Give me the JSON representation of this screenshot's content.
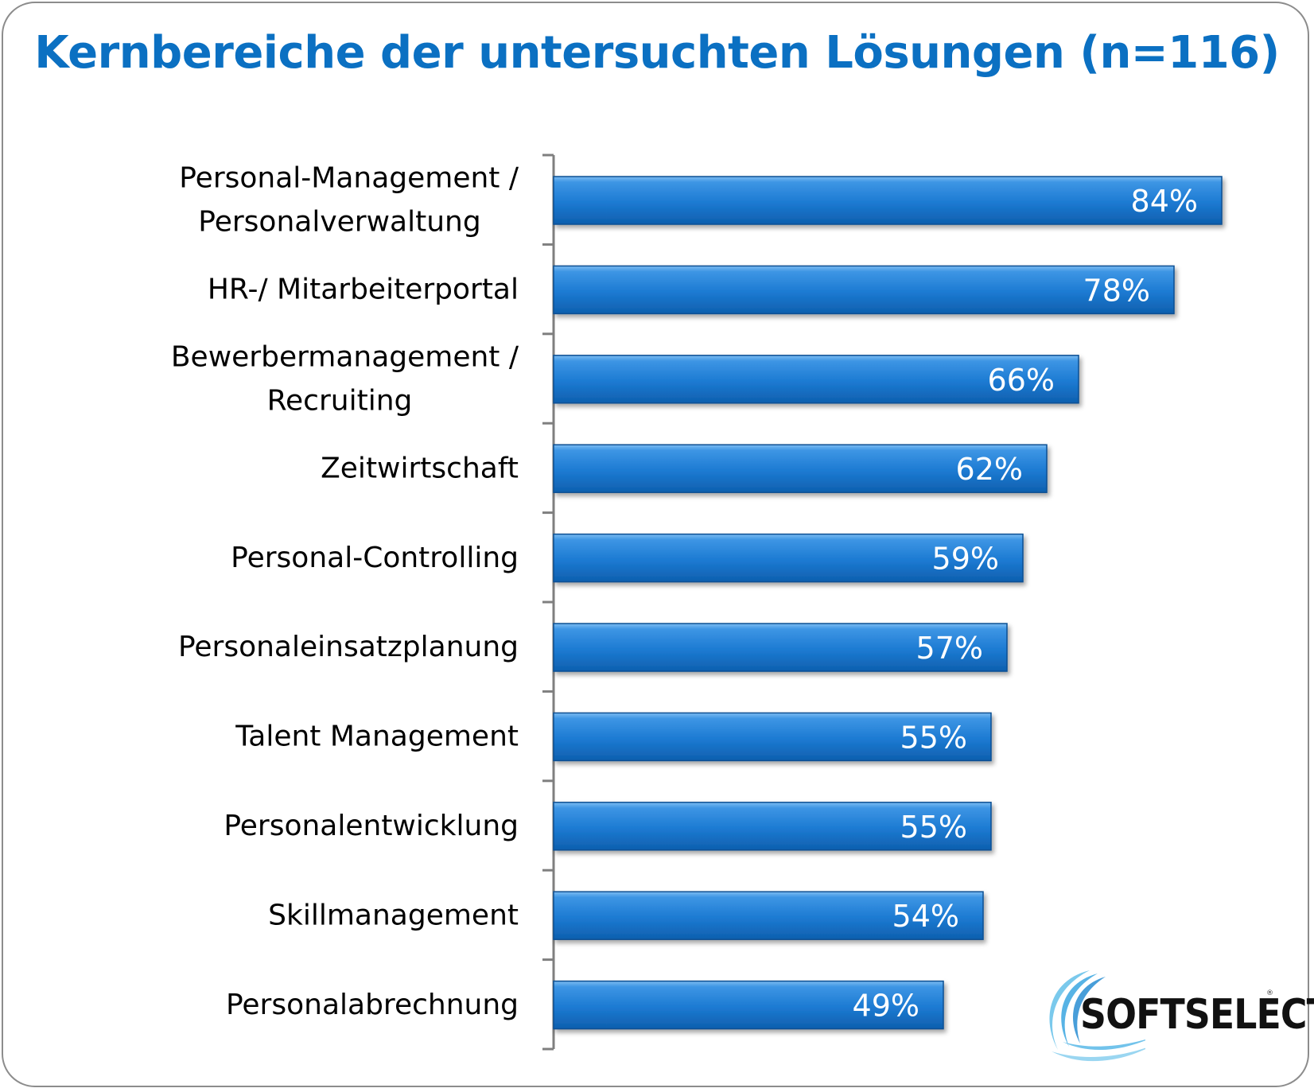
{
  "title": "Kernbereiche der untersuchten Lösungen (n=116)",
  "colors": {
    "title": "#0b70c2",
    "bar_light": "#5aa8ea",
    "bar_mid": "#1a78d2",
    "bar_dark": "#0b5aa6",
    "axis": "#7f7f7f"
  },
  "logo": {
    "text_first": "SOFT",
    "text_second": "SELECT",
    "mark": "®",
    "icon": "swoosh-icon"
  },
  "chart_data": {
    "type": "bar",
    "orientation": "horizontal",
    "title": "Kernbereiche der untersuchten Lösungen (n=116)",
    "categories": [
      [
        "Personal-Management /",
        "Personalverwaltung"
      ],
      [
        "HR-/ Mitarbeiterportal"
      ],
      [
        "Bewerbermanagement /",
        "Recruiting"
      ],
      [
        "Zeitwirtschaft"
      ],
      [
        "Personal-Controlling"
      ],
      [
        "Personaleinsatzplanung"
      ],
      [
        "Talent Management"
      ],
      [
        "Personalentwicklung"
      ],
      [
        "Skillmanagement"
      ],
      [
        "Personalabrechnung"
      ]
    ],
    "values": [
      84,
      78,
      66,
      62,
      59,
      57,
      55,
      55,
      54,
      49
    ],
    "value_labels": [
      "84%",
      "78%",
      "66%",
      "62%",
      "59%",
      "57%",
      "55%",
      "55%",
      "54%",
      "49%"
    ],
    "unit": "%",
    "xlim": [
      0,
      100
    ],
    "grid": false,
    "legend": "none"
  }
}
